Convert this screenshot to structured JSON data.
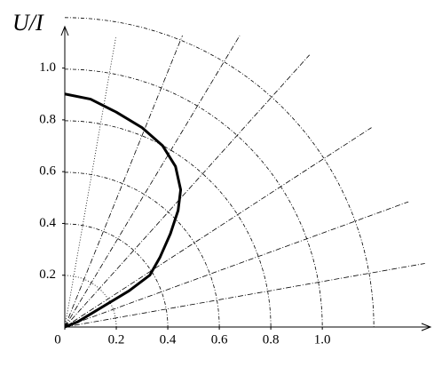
{
  "chart_data": {
    "type": "line",
    "title": "U/I",
    "x": [
      0,
      0.1,
      0.2,
      0.3,
      0.38,
      0.43,
      0.45,
      0.44,
      0.41,
      0.37,
      0.33,
      0.25,
      0.15,
      0.05,
      0
    ],
    "series": [
      {
        "color": "#000000",
        "values": [
          0.9,
          0.88,
          0.83,
          0.77,
          0.7,
          0.62,
          0.53,
          0.45,
          0.36,
          0.27,
          0.2,
          0.14,
          0.08,
          0.02,
          0
        ]
      }
    ],
    "xlim": [
      0,
      1.42
    ],
    "ylim": [
      0,
      1.16
    ],
    "xticks": [
      0,
      0.2,
      0.4,
      0.6,
      0.8,
      {
        "value": 1,
        "label": "1.0"
      }
    ],
    "yticks": [
      0.2,
      0.4,
      0.6,
      0.8,
      {
        "value": 1,
        "label": "1.0"
      }
    ]
  }
}
